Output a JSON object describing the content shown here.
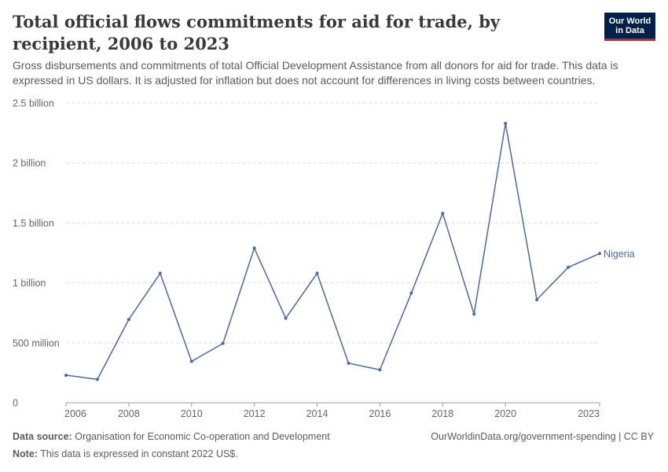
{
  "header": {
    "title": "Total official flows commitments for aid for trade, by recipient, 2006 to 2023",
    "subtitle": "Gross disbursements and commitments of total Official Development Assistance from all donors for aid for trade. This data is expressed in US dollars. It is adjusted for inflation but does not account for differences in living costs between countries.",
    "logo_line1": "Our World",
    "logo_line2": "in Data"
  },
  "footer": {
    "source_label": "Data source:",
    "source_text": "Organisation for Economic Co-operation and Development",
    "note_label": "Note:",
    "note_text": "This data is expressed in constant 2022 US$.",
    "credit": "OurWorldinData.org/government-spending | CC BY"
  },
  "colors": {
    "series": "#4c6a9c",
    "grid": "#dddddd",
    "axis": "#999999",
    "logo_bg": "#002147",
    "logo_accent": "#ce261e"
  },
  "chart_data": {
    "type": "line",
    "title": "Total official flows commitments for aid for trade, by recipient, 2006 to 2023",
    "xlabel": "",
    "ylabel": "",
    "xlim": [
      2006,
      2023
    ],
    "ylim": [
      0,
      2500000000
    ],
    "grid": true,
    "x_ticks": [
      {
        "value": 2006,
        "label": "2006"
      },
      {
        "value": 2008,
        "label": "2008"
      },
      {
        "value": 2010,
        "label": "2010"
      },
      {
        "value": 2012,
        "label": "2012"
      },
      {
        "value": 2014,
        "label": "2014"
      },
      {
        "value": 2016,
        "label": "2016"
      },
      {
        "value": 2018,
        "label": "2018"
      },
      {
        "value": 2020,
        "label": "2020"
      },
      {
        "value": 2023,
        "label": "2023"
      }
    ],
    "y_ticks": [
      {
        "value": 0,
        "label": "0"
      },
      {
        "value": 500000000,
        "label": "500 million"
      },
      {
        "value": 1000000000,
        "label": "1 billion"
      },
      {
        "value": 1500000000,
        "label": "1.5 billion"
      },
      {
        "value": 2000000000,
        "label": "2 billion"
      },
      {
        "value": 2500000000,
        "label": "2.5 billion"
      }
    ],
    "series": [
      {
        "name": "Nigeria",
        "x": [
          2006,
          2007,
          2008,
          2009,
          2010,
          2011,
          2012,
          2013,
          2014,
          2015,
          2016,
          2017,
          2018,
          2019,
          2020,
          2021,
          2022,
          2023
        ],
        "values": [
          230000000,
          195000000,
          695000000,
          1080000000,
          345000000,
          495000000,
          1290000000,
          705000000,
          1080000000,
          330000000,
          275000000,
          915000000,
          1580000000,
          740000000,
          2330000000,
          860000000,
          1130000000,
          1245000000
        ]
      }
    ]
  }
}
